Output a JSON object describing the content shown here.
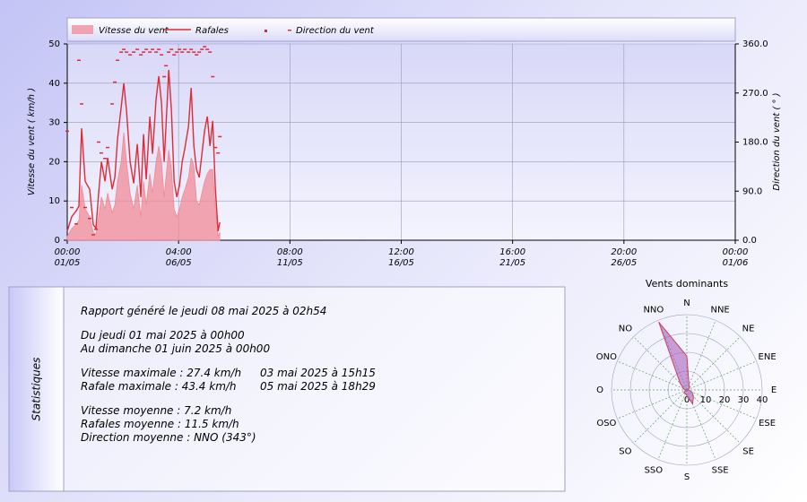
{
  "chart_data": [
    {
      "type": "timeseries",
      "legend": "top",
      "grid": true,
      "ylabel": "Vitesse du vent ( km/h )",
      "y2label": "Direction du vent ( ° )",
      "xlim": [
        0,
        744
      ],
      "xticks": [
        {
          "value": 0,
          "label": "00:00\n01/05"
        },
        {
          "value": 124,
          "label": "04:00\n06/05"
        },
        {
          "value": 248,
          "label": "08:00\n11/05"
        },
        {
          "value": 372,
          "label": "12:00\n16/05"
        },
        {
          "value": 496,
          "label": "16:00\n21/05"
        },
        {
          "value": 620,
          "label": "20:00\n26/05"
        },
        {
          "value": 744,
          "label": "00:00\n01/06"
        }
      ],
      "ylim": [
        0,
        50
      ],
      "yticks": [
        0,
        10,
        20,
        30,
        40,
        50
      ],
      "y2lim": [
        0,
        360
      ],
      "y2ticks": [
        {
          "value": 0,
          "label": "0.0"
        },
        {
          "value": 90,
          "label": "90.0"
        },
        {
          "value": 180,
          "label": "180.0"
        },
        {
          "value": 270,
          "label": "270.0"
        },
        {
          "value": 360,
          "label": "360.0"
        }
      ],
      "x": [
        0,
        5,
        10,
        13,
        16,
        20,
        25,
        29,
        32,
        35,
        38,
        42,
        45,
        50,
        53,
        56,
        60,
        63,
        66,
        70,
        74,
        78,
        82,
        85,
        88,
        92,
        95,
        99,
        102,
        105,
        108,
        110,
        113,
        116,
        119,
        122,
        125,
        128,
        131,
        135,
        138,
        141,
        144,
        147,
        150,
        153,
        156,
        159,
        162,
        165,
        168,
        170
      ],
      "series": [
        {
          "name": "Vitesse du vent",
          "kind": "area",
          "color": "#f08a96",
          "values": [
            1,
            3,
            4,
            5,
            14,
            8,
            6,
            2,
            1.5,
            6,
            11,
            8,
            12,
            7,
            9,
            15,
            20,
            27.4,
            20,
            12,
            8,
            14,
            6,
            15,
            9,
            17,
            12,
            20,
            24,
            20,
            11,
            16,
            23,
            18,
            8,
            6,
            8,
            11,
            13,
            16,
            21,
            19,
            10,
            9,
            12,
            15,
            17,
            18,
            18,
            8,
            1,
            2
          ]
        },
        {
          "name": "Rafales",
          "kind": "line",
          "color": "#e02a36",
          "values": [
            2.3,
            6,
            7.5,
            8.7,
            28.5,
            15,
            13,
            4,
            3,
            12,
            20,
            15,
            21,
            13,
            16,
            25.8,
            33.8,
            40,
            33,
            20,
            14.5,
            24.5,
            11,
            27,
            15.5,
            31.5,
            22,
            36,
            41.8,
            35,
            20,
            29,
            43.4,
            33,
            15,
            11,
            14,
            20,
            23.5,
            29,
            38.8,
            24,
            18,
            16,
            22,
            28,
            31.5,
            24,
            30.4,
            13,
            2.3,
            4.6
          ]
        },
        {
          "name": "Direction du vent",
          "kind": "scatter",
          "axis": "y2",
          "color": "#e02a36",
          "values": [
            200,
            60,
            30,
            330,
            250,
            60,
            40,
            10,
            20,
            180,
            160,
            150,
            170,
            250,
            290,
            330,
            345,
            350,
            345,
            340,
            345,
            350,
            340,
            345,
            350,
            345,
            350,
            345,
            350,
            340,
            300,
            320,
            345,
            350,
            340,
            345,
            350,
            345,
            350,
            345,
            350,
            345,
            340,
            345,
            350,
            355,
            350,
            345,
            300,
            170,
            160,
            190
          ]
        }
      ]
    },
    {
      "type": "rose",
      "title": "Vents dominants",
      "color": "#a860c0",
      "categories": [
        "N",
        "NNE",
        "NE",
        "ENE",
        "E",
        "ESE",
        "SE",
        "SSE",
        "S",
        "SSO",
        "SO",
        "OSO",
        "O",
        "ONO",
        "NO",
        "NNO"
      ],
      "values": [
        18,
        3,
        2,
        1,
        1,
        3,
        5,
        8,
        3,
        2,
        2,
        1,
        1,
        2,
        5,
        39
      ],
      "rlim": [
        0,
        40
      ],
      "rticks": [
        0,
        10,
        20,
        30,
        40
      ]
    }
  ],
  "statistics": {
    "title": "Statistiques",
    "report": "Rapport généré le jeudi 08 mai 2025 à 02h54",
    "period_from": "Du jeudi 01 mai 2025 à 00h00",
    "period_to": "Au dimanche 01 juin 2025 à 00h00",
    "max_speed": "Vitesse maximale : 27.4 km/h",
    "max_speed_date": "03 mai 2025 à 15h15",
    "max_gust": "Rafale maximale : 43.4 km/h",
    "max_gust_date": "05 mai 2025 à 18h29",
    "avg_speed": "Vitesse moyenne : 7.2 km/h",
    "avg_gust": "Rafales moyenne : 11.5 km/h",
    "avg_direction": "Direction moyenne : NNO (343°)"
  }
}
